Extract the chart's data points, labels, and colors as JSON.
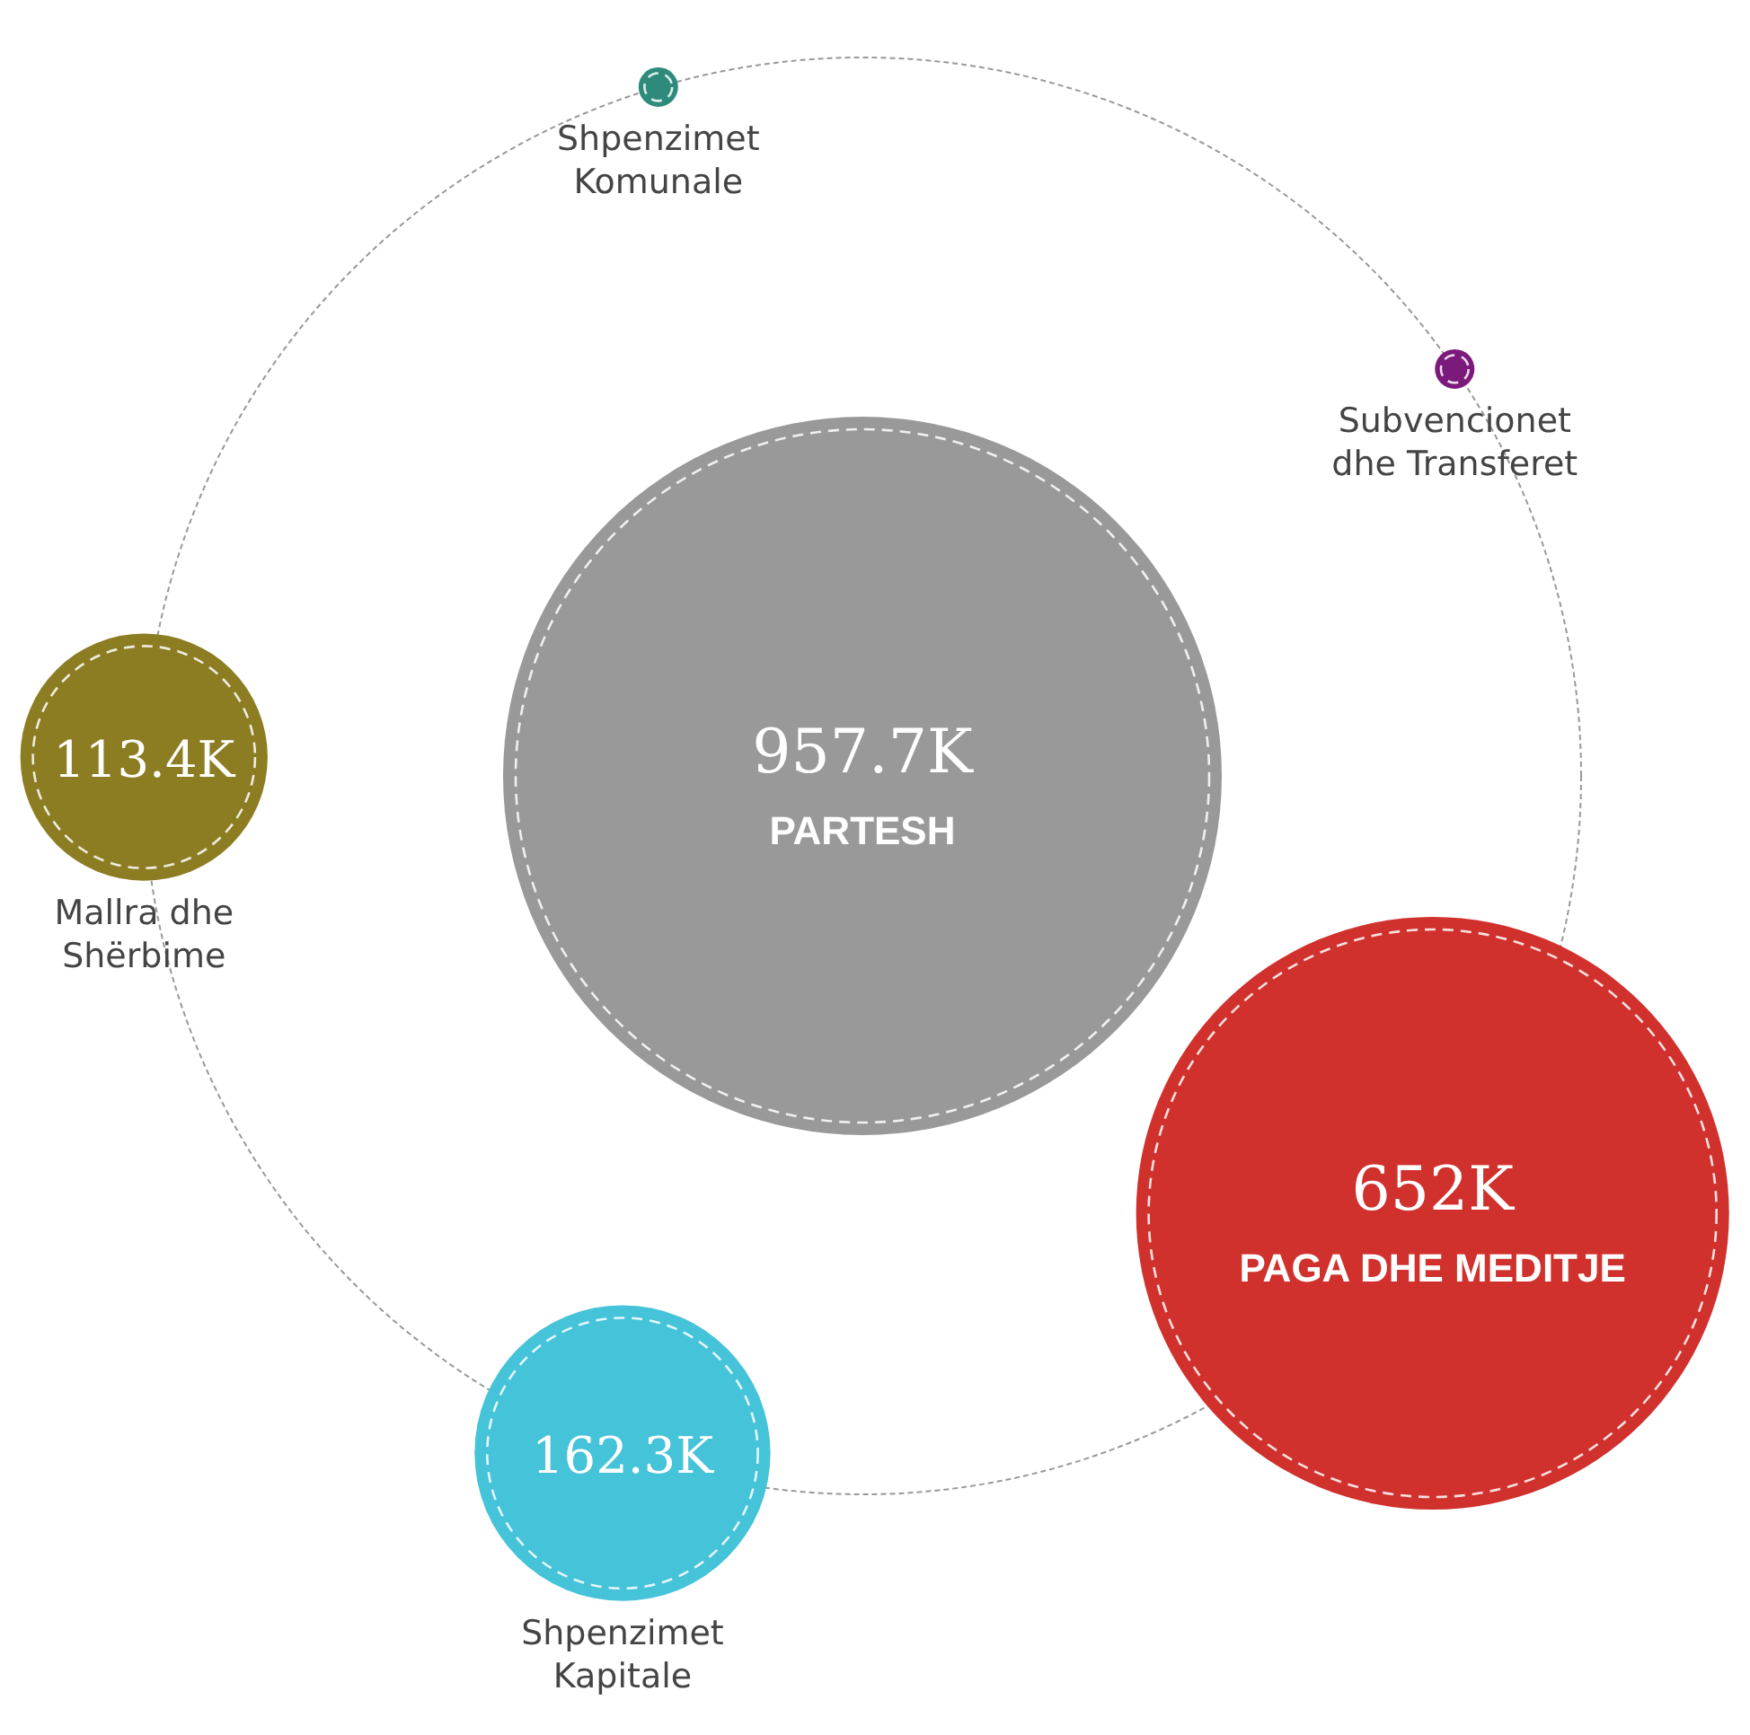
{
  "chart_data": {
    "type": "other",
    "categories": [
      "PARTESH",
      "Shpenzimet Komunale",
      "Subvencionet dhe Transferet",
      "PAGA DHE MEDITJE",
      "Shpenzimet Kapitale",
      "Mallra dhe Shërbime"
    ],
    "values": [
      957.7,
      null,
      null,
      652,
      162.3,
      113.4
    ],
    "value_labels": [
      "957.7K",
      null,
      null,
      "652K",
      "162.3K",
      "113.4K"
    ],
    "colors": [
      "#999999",
      "#2e8b7c",
      "#7b1a7b",
      "#d0312d",
      "#45c3d9",
      "#8c7d23"
    ]
  }
}
